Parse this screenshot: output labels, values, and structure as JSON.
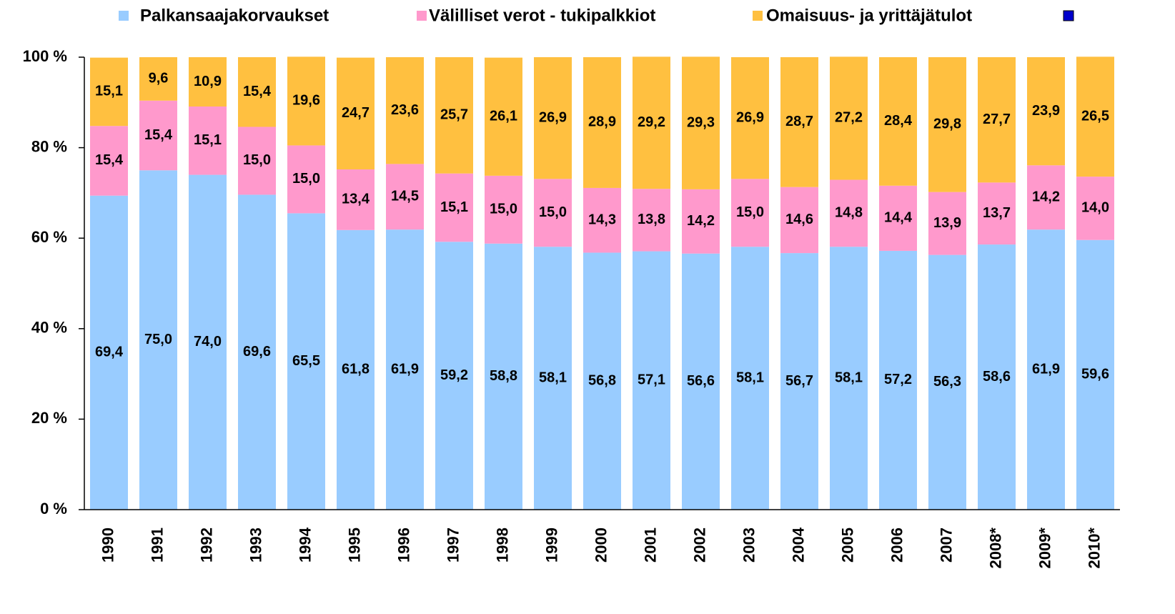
{
  "chart_data": {
    "type": "stacked_bar",
    "categories": [
      "1990",
      "1991",
      "1992",
      "1993",
      "1994",
      "1995",
      "1996",
      "1997",
      "1998",
      "1999",
      "2000",
      "2001",
      "2002",
      "2003",
      "2004",
      "2005",
      "2006",
      "2007",
      "2008*",
      "2009*",
      "2010*"
    ],
    "series": [
      {
        "name": "Palkansaajakorvaukset",
        "color": "#99ccff",
        "values": [
          69.4,
          75.0,
          74.0,
          69.6,
          65.5,
          61.8,
          61.9,
          59.2,
          58.8,
          58.1,
          56.8,
          57.1,
          56.6,
          58.1,
          56.7,
          58.1,
          57.2,
          56.3,
          58.6,
          61.9,
          59.6
        ],
        "value_labels": [
          "69,4",
          "75,0",
          "74,0",
          "69,6",
          "65,5",
          "61,8",
          "61,9",
          "59,2",
          "58,8",
          "58,1",
          "56,8",
          "57,1",
          "56,6",
          "58,1",
          "56,7",
          "58,1",
          "57,2",
          "56,3",
          "58,6",
          "61,9",
          "59,6"
        ]
      },
      {
        "name": "Välilliset verot - tukipalkkiot",
        "color": "#ff99cc",
        "values": [
          15.4,
          15.4,
          15.1,
          15.0,
          15.0,
          13.4,
          14.5,
          15.1,
          15.0,
          15.0,
          14.3,
          13.8,
          14.2,
          15.0,
          14.6,
          14.8,
          14.4,
          13.9,
          13.7,
          14.2,
          14.0
        ],
        "value_labels": [
          "15,4",
          "15,4",
          "15,1",
          "15,0",
          "15,0",
          "13,4",
          "14,5",
          "15,1",
          "15,0",
          "15,0",
          "14,3",
          "13,8",
          "14,2",
          "15,0",
          "14,6",
          "14,8",
          "14,4",
          "13,9",
          "13,7",
          "14,2",
          "14,0"
        ]
      },
      {
        "name": "Omaisuus- ja yrittäjätulot",
        "color": "#ffc040",
        "values": [
          15.1,
          9.6,
          10.9,
          15.4,
          19.6,
          24.7,
          23.6,
          25.7,
          26.1,
          26.9,
          28.9,
          29.2,
          29.3,
          26.9,
          28.7,
          27.2,
          28.4,
          29.8,
          27.7,
          23.9,
          26.5
        ],
        "value_labels": [
          "15,1",
          "9,6",
          "10,9",
          "15,4",
          "19,6",
          "24,7",
          "23,6",
          "25,7",
          "26,1",
          "26,9",
          "28,9",
          "29,2",
          "29,3",
          "26,9",
          "28,7",
          "27,2",
          "28,4",
          "29,8",
          "27,7",
          "23,9",
          "26,5"
        ]
      }
    ],
    "ylim": [
      0,
      100
    ],
    "yticks": [
      {
        "value": 0,
        "label": "0 %"
      },
      {
        "value": 20,
        "label": "20 %"
      },
      {
        "value": 40,
        "label": "40 %"
      },
      {
        "value": 60,
        "label": "60 %"
      },
      {
        "value": 80,
        "label": "80 %"
      },
      {
        "value": 100,
        "label": "100 %"
      }
    ]
  }
}
